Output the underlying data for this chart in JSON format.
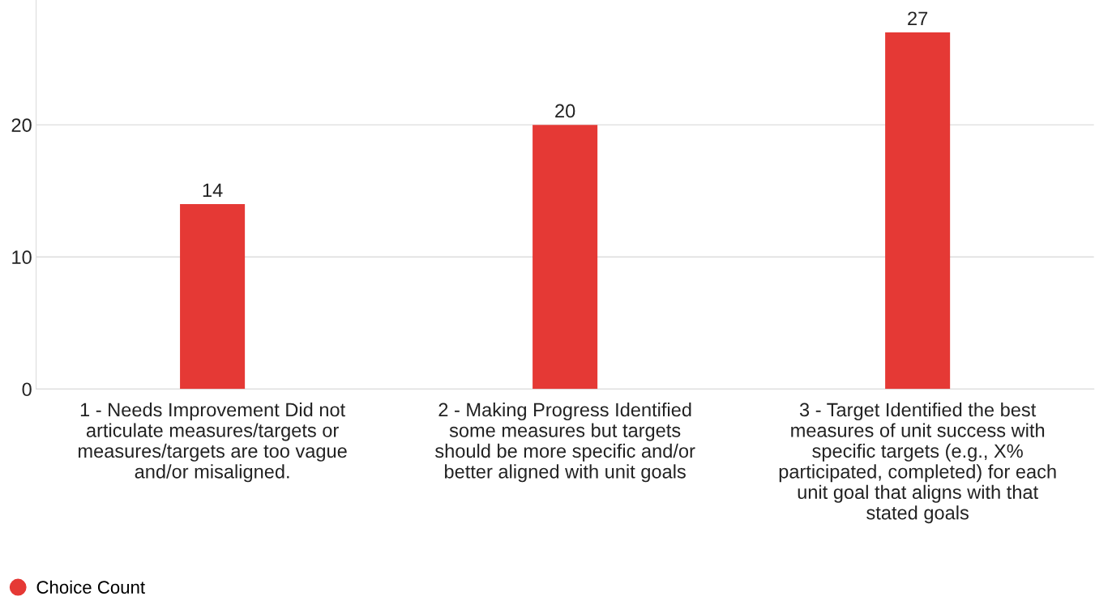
{
  "chart_data": {
    "type": "bar",
    "categories": [
      "1 - Needs Improvement Did not\narticulate measures/targets or\nmeasures/targets are too vague\nand/or misaligned.",
      "2 - Making Progress Identified\nsome measures but targets\nshould be more specific and/or\nbetter aligned with unit goals",
      "3 - Target Identified the best\nmeasures of unit success with\nspecific targets (e.g., X%\nparticipated, completed) for each\nunit goal that aligns with that\nstated goals"
    ],
    "series": [
      {
        "name": "Choice Count",
        "color": "#e53935",
        "values": [
          14,
          20,
          27
        ]
      }
    ],
    "ylim": [
      0,
      29.45
    ],
    "yticks": [
      0,
      10,
      20
    ],
    "grid": "y",
    "data_labels": true,
    "legend": "bottom left",
    "marker": "circle"
  }
}
